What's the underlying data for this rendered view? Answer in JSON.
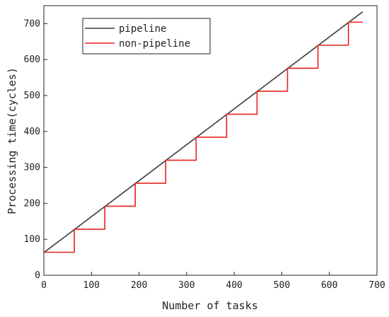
{
  "chart_data": {
    "type": "line",
    "title": "",
    "xlabel": "Number of tasks",
    "ylabel": "Processing time(cycles)",
    "xlim": [
      0,
      700
    ],
    "ylim": [
      0,
      750
    ],
    "x_ticks": [
      0,
      100,
      200,
      300,
      400,
      500,
      600,
      700
    ],
    "y_ticks": [
      0,
      100,
      200,
      300,
      400,
      500,
      600,
      700
    ],
    "grid": false,
    "legend_position": "top-left",
    "series": [
      {
        "name": "pipeline",
        "color": "#3a3a3a",
        "style": "linear",
        "x": [
          0,
          670
        ],
        "y": [
          63,
          733
        ]
      },
      {
        "name": "non-pipeline",
        "color": "#e8201f",
        "style": "step",
        "x": [
          0,
          64,
          64,
          128,
          128,
          192,
          192,
          256,
          256,
          320,
          320,
          384,
          384,
          448,
          448,
          512,
          512,
          576,
          576,
          640,
          640,
          670
        ],
        "y": [
          64,
          64,
          128,
          128,
          192,
          192,
          256,
          256,
          320,
          320,
          384,
          384,
          448,
          448,
          512,
          512,
          576,
          576,
          640,
          640,
          704,
          704
        ]
      }
    ]
  }
}
